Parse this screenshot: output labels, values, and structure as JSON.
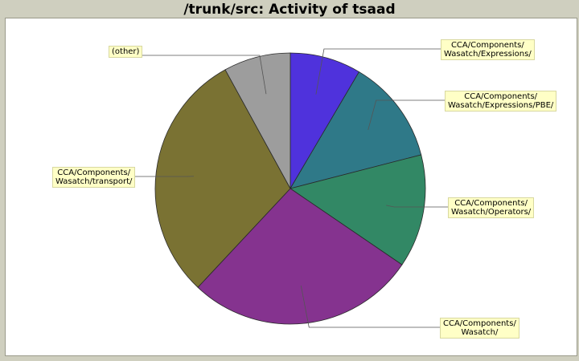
{
  "page": {
    "title": "/trunk/src: Activity of tsaad"
  },
  "chart_data": {
    "type": "pie",
    "title": "/trunk/src: Activity of tsaad",
    "start_angle_deg": 90,
    "direction": "clockwise",
    "slices": [
      {
        "label": "CCA/Components/\nWasatch/Expressions/",
        "value": 8.5,
        "color": "#4f32dc"
      },
      {
        "label": "CCA/Components/\nWasatch/Expressions/PBE/",
        "value": 12.5,
        "color": "#2f7988"
      },
      {
        "label": "CCA/Components/\nWasatch/Operators/",
        "value": 13.5,
        "color": "#328865"
      },
      {
        "label": "CCA/Components/\nWasatch/",
        "value": 27.5,
        "color": "#85338f"
      },
      {
        "label": "CCA/Components/\nWasatch/transport/",
        "value": 30.0,
        "color": "#7a7233"
      },
      {
        "label": "(other)",
        "value": 8.0,
        "color": "#9d9d9d"
      }
    ]
  }
}
